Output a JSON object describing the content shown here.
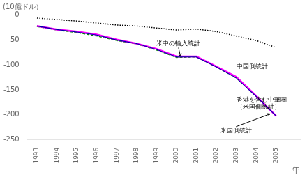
{
  "chart_data": {
    "type": "line",
    "ylabel": "(10億ドル）",
    "xlabel": "年",
    "x": [
      1993,
      1994,
      1995,
      1996,
      1997,
      1998,
      1999,
      2000,
      2001,
      2002,
      2003,
      2004,
      2005
    ],
    "xlim": [
      1992.5,
      2006.2
    ],
    "xticks": [
      1993,
      1994,
      1995,
      1996,
      1997,
      1998,
      1999,
      2000,
      2001,
      2002,
      2003,
      2004,
      2005
    ],
    "ylim": [
      -250,
      5
    ],
    "yticks": [
      0,
      -50,
      -100,
      -150,
      -200,
      -250
    ],
    "grid": false,
    "series": [
      {
        "color": "#000000",
        "line_style": "dotted",
        "values": [
          -6,
          -9,
          -12,
          -16,
          -20,
          -22,
          -26,
          -30,
          -28,
          -33,
          -42,
          -51,
          -65
        ]
      },
      {
        "color": "#008800",
        "line_style": "dashed",
        "values": [
          -23,
          -30,
          -35,
          -42,
          -51,
          -58,
          -70,
          -85,
          -84,
          -104,
          -126,
          -163,
          -202
        ]
      },
      {
        "color": "#ff00ff",
        "line_style": "solid",
        "values": [
          -22,
          -29,
          -33,
          -39,
          -49,
          -57,
          -68,
          -83,
          -83,
          -103,
          -124,
          -162,
          -202
        ]
      },
      {
        "color": "#0000aa",
        "line_style": "solid",
        "values": [
          -22,
          -29,
          -34,
          -40,
          -50,
          -57,
          -69,
          -84,
          -84,
          -104,
          -126,
          -163,
          -202
        ]
      }
    ],
    "annotations": [
      {
        "text": "米中の輸入統計",
        "x": 1999.0,
        "y": -57,
        "arrow_to": [
          2000.2,
          -83
        ]
      },
      {
        "text": "中国側統計",
        "x": 2003.0,
        "y": -103
      },
      {
        "text": "香港を含む中華圏",
        "x": 2003.0,
        "y": -170
      },
      {
        "text": "（米国側統計）",
        "x": 2003.0,
        "y": -185
      },
      {
        "text": "米国側統計",
        "x": 2002.2,
        "y": -232,
        "arrow_to": [
          2004.7,
          -198
        ]
      }
    ]
  }
}
